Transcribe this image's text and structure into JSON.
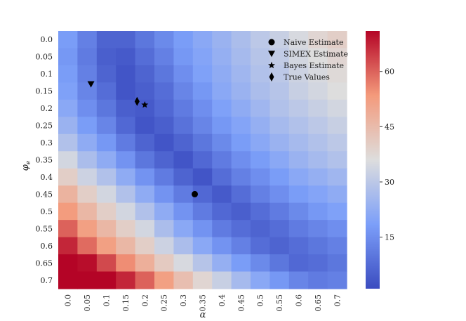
{
  "chart_data": {
    "type": "heatmap",
    "xlabel": "α",
    "ylabel": "φ_e",
    "ylabel_main": "φ",
    "ylabel_sub": "e",
    "x_ticks": [
      "0.0",
      "0.05",
      "0.1",
      "0.15",
      "0.2",
      "0.25",
      "0.3",
      "0.35",
      "0.4",
      "0.45",
      "0.5",
      "0.55",
      "0.6",
      "0.65",
      "0.7"
    ],
    "y_ticks": [
      "0.0",
      "0.05",
      "0.1",
      "0.15",
      "0.2",
      "0.25",
      "0.3",
      "0.35",
      "0.4",
      "0.45",
      "0.5",
      "0.55",
      "0.6",
      "0.65",
      "0.7"
    ],
    "values": [
      [
        18,
        12,
        6,
        6,
        10,
        14,
        18,
        21,
        24,
        27,
        30,
        32,
        35,
        38,
        40
      ],
      [
        17,
        11,
        5,
        4,
        8,
        12,
        17,
        20,
        23,
        26,
        29,
        31,
        34,
        36,
        38
      ],
      [
        18,
        12,
        6,
        3,
        6,
        10,
        15,
        19,
        22,
        25,
        28,
        30,
        33,
        35,
        37
      ],
      [
        19,
        13,
        8,
        3,
        5,
        8,
        13,
        17,
        21,
        24,
        27,
        29,
        32,
        34,
        36
      ],
      [
        21,
        15,
        10,
        5,
        4,
        7,
        11,
        15,
        19,
        22,
        25,
        28,
        30,
        32,
        34
      ],
      [
        24,
        18,
        13,
        7,
        3,
        5,
        9,
        13,
        17,
        20,
        23,
        26,
        28,
        30,
        32
      ],
      [
        28,
        22,
        17,
        11,
        6,
        3,
        6,
        10,
        14,
        18,
        21,
        24,
        26,
        28,
        30
      ],
      [
        34,
        27,
        22,
        16,
        10,
        6,
        3,
        7,
        11,
        15,
        18,
        21,
        24,
        26,
        28
      ],
      [
        40,
        33,
        28,
        22,
        16,
        11,
        6,
        3,
        8,
        12,
        15,
        18,
        21,
        23,
        25
      ],
      [
        47,
        40,
        34,
        28,
        22,
        16,
        11,
        7,
        4,
        8,
        12,
        15,
        18,
        20,
        22
      ],
      [
        53,
        46,
        40,
        34,
        28,
        22,
        16,
        11,
        7,
        5,
        8,
        11,
        14,
        17,
        19
      ],
      [
        60,
        52,
        46,
        40,
        34,
        27,
        21,
        16,
        11,
        8,
        6,
        8,
        11,
        13,
        15
      ],
      [
        67,
        59,
        52,
        46,
        40,
        33,
        27,
        21,
        16,
        12,
        8,
        6,
        8,
        10,
        12
      ],
      [
        71,
        70,
        63,
        55,
        48,
        41,
        35,
        29,
        23,
        18,
        14,
        10,
        7,
        8,
        10
      ],
      [
        71,
        71,
        71,
        67,
        60,
        52,
        44,
        38,
        32,
        26,
        21,
        17,
        13,
        11,
        12
      ]
    ],
    "vmin": 1,
    "vmax": 71,
    "colorbar_ticks": [
      15,
      30,
      45,
      60
    ],
    "markers": [
      {
        "label": "Naive Estimate",
        "shape": "circle",
        "alpha": 0.33,
        "phi": 0.45
      },
      {
        "label": "SIMEX Estimate",
        "shape": "triangle-down",
        "alpha": 0.06,
        "phi": 0.13
      },
      {
        "label": "Bayes Estimate",
        "shape": "star",
        "alpha": 0.2,
        "phi": 0.19
      },
      {
        "label": "True Values",
        "shape": "diamond",
        "alpha": 0.18,
        "phi": 0.18
      }
    ],
    "legend_position": "top-right",
    "colors": {
      "low": "#3b4cc0",
      "mid": "#dddddd",
      "high": "#b40426",
      "marker": "#000000"
    }
  }
}
